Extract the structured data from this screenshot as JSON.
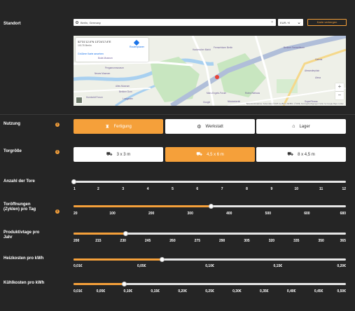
{
  "location": {
    "label": "Standort",
    "search_value": "Berlin, Germany",
    "currency_value": "EUR / €",
    "map_button_label": "Karte verbergen",
    "map": {
      "coords": "52°31'12.0\"N 13°24'17.8\"E",
      "address": "10178 Berlin",
      "bigger_map": "Größere Karte ansehen",
      "route_label": "Routenplaner",
      "zoom_in": "+",
      "zoom_out": "−",
      "footer": "Tastenkombinationen   Kartendaten ©2025 GeoBasis-DE/BKG (©2009)   Nutzungsbedingungen   Fehler bei Google Maps melden",
      "places": [
        "Altes Museum",
        "Berliner Dom",
        "Lustgarten",
        "Fernsehturm Berlin",
        "Rotes Rathaus",
        "Nikolaiviertel",
        "Marx-Engels-Forum",
        "Hackescher Markt",
        "Neues Museum",
        "Bode-Museum",
        "Pergamonmuseum",
        "Berliner Fernsehturm",
        "Alexanderplatz",
        "Galeria",
        "Alexa",
        "SuperFitness",
        "Humboldt Forum",
        "Google"
      ]
    }
  },
  "usage": {
    "label": "Nutzung",
    "options": [
      {
        "label": "Fertigung",
        "icon": "factory-icon",
        "active": true
      },
      {
        "label": "Werkstatt",
        "icon": "tools-icon",
        "active": false
      },
      {
        "label": "Lager",
        "icon": "warehouse-icon",
        "active": false
      }
    ]
  },
  "door_size": {
    "label": "Torgröße",
    "options": [
      {
        "label": "3 x 3 m",
        "icon": "forklift-icon",
        "active": false
      },
      {
        "label": "4,5 x 6 m",
        "icon": "truck-icon",
        "active": true
      },
      {
        "label": "8 x 4,5 m",
        "icon": "big-truck-icon",
        "active": false
      }
    ]
  },
  "sliders": [
    {
      "key": "doors",
      "label": "Anzahl der Tore",
      "info": false,
      "value_fraction": 0.0,
      "ticks": [
        "1",
        "2",
        "3",
        "4",
        "5",
        "6",
        "7",
        "8",
        "9",
        "10",
        "11",
        "12"
      ]
    },
    {
      "key": "cycles",
      "label": "Toröffnungen\n(Zyklen) pro Tag",
      "info": true,
      "value_fraction": 0.505,
      "ticks": [
        "20",
        "100",
        "200",
        "300",
        "400",
        "500",
        "600",
        "680"
      ]
    },
    {
      "key": "days",
      "label": "Produktivtage pro\nJahr",
      "info": false,
      "value_fraction": 0.19,
      "ticks": [
        "200",
        "215",
        "230",
        "245",
        "260",
        "275",
        "290",
        "305",
        "320",
        "335",
        "350",
        "365"
      ]
    },
    {
      "key": "heat",
      "label": "Heizkosten pro kWh",
      "info": false,
      "value_fraction": 0.325,
      "ticks": [
        "0,01€",
        "0,05€",
        "0,10€",
        "0,15€",
        "0,20€"
      ]
    },
    {
      "key": "cool",
      "label": "Kühlkosten pro kWh",
      "info": false,
      "value_fraction": 0.185,
      "ticks": [
        "0,01€",
        "0,05€",
        "0,10€",
        "0,15€",
        "0,20€",
        "0,25€",
        "0,30€",
        "0,35€",
        "0,40€",
        "0,45€",
        "0,50€"
      ]
    }
  ],
  "info_glyph": "i",
  "colors": {
    "accent": "#f5a03a",
    "background": "#252525",
    "track": "#e6e6e6"
  }
}
